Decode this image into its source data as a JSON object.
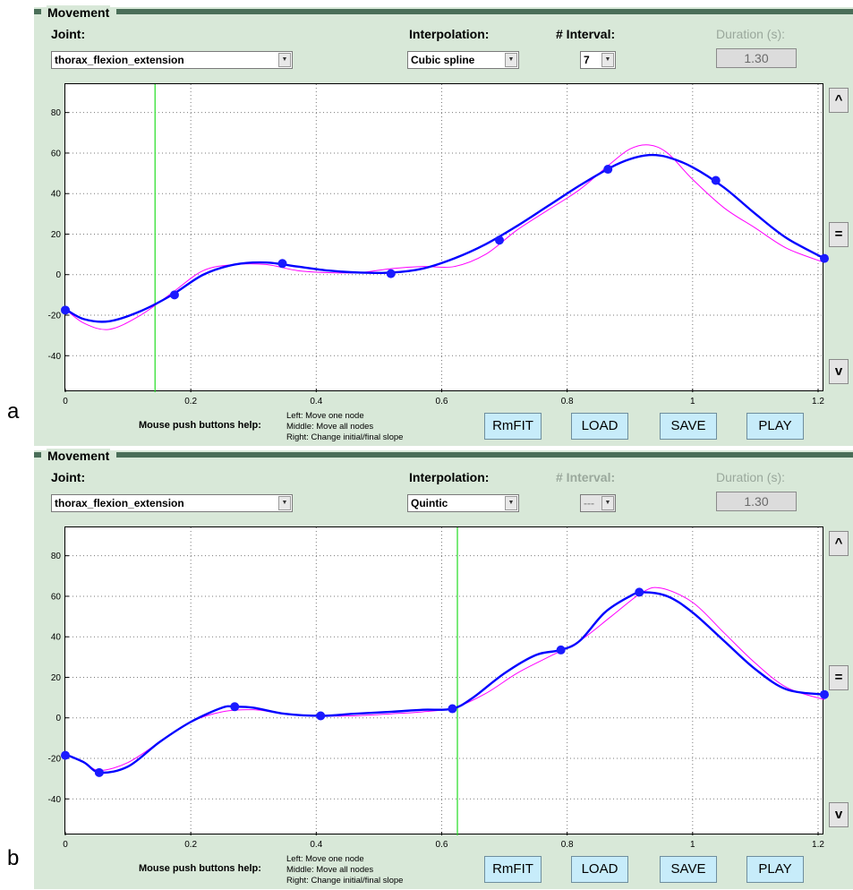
{
  "figure_labels": [
    "a",
    "b"
  ],
  "panels": [
    {
      "title": "Movement",
      "joint_label": "Joint:",
      "joint_value": "thorax_flexion_extension",
      "interp_label": "Interpolation:",
      "interp_value": "Cubic spline",
      "interval_label": "# Interval:",
      "interval_value": "7",
      "interval_enabled": true,
      "duration_label": "Duration (s):",
      "duration_value": "1.30",
      "side_buttons": [
        "^",
        "=",
        "v"
      ],
      "help_label": "Mouse push buttons help:",
      "help_lines": [
        "Left: Move one node",
        "Middle: Move all nodes",
        "Right: Change initial/final slope"
      ],
      "action_buttons": [
        "RmFIT",
        "LOAD",
        "SAVE",
        "PLAY"
      ],
      "chart_data": {
        "type": "line",
        "xlim": [
          0,
          1.21
        ],
        "ylim": [
          -58,
          94
        ],
        "xticks": [
          0,
          0.2,
          0.4,
          0.6,
          0.8,
          1,
          1.2
        ],
        "xtick_labels": [
          "0",
          "0.2",
          "0.4",
          "0.6",
          "0.8",
          "1",
          "1.2"
        ],
        "yticks": [
          -40,
          -20,
          0,
          20,
          40,
          60,
          80
        ],
        "ytick_labels": [
          "-40",
          "-20",
          "0",
          "20",
          "40",
          "60",
          "80"
        ],
        "grid": true,
        "cursor_x": 0.143,
        "series": [
          {
            "color": "#ff00ff",
            "x": [
              0,
              0.03,
              0.07,
              0.12,
              0.17,
              0.22,
              0.27,
              0.32,
              0.37,
              0.42,
              0.47,
              0.52,
              0.57,
              0.62,
              0.67,
              0.72,
              0.77,
              0.82,
              0.87,
              0.9,
              0.93,
              0.96,
              1.0,
              1.05,
              1.1,
              1.15,
              1.21
            ],
            "y": [
              -17,
              -24,
              -27,
              -20,
              -9,
              2,
              5,
              5,
              2,
              1,
              1,
              3,
              4,
              4,
              10,
              22,
              32,
              42,
              55,
              62,
              64,
              60,
              47,
              33,
              23,
              13,
              6
            ]
          },
          {
            "color": "#0000ff",
            "x": [
              0,
              0.03,
              0.07,
              0.12,
              0.17,
              0.22,
              0.27,
              0.32,
              0.37,
              0.42,
              0.47,
              0.52,
              0.57,
              0.62,
              0.67,
              0.72,
              0.77,
              0.82,
              0.87,
              0.9,
              0.93,
              0.96,
              1.0,
              1.05,
              1.1,
              1.15,
              1.21
            ],
            "y": [
              -17,
              -22,
              -23,
              -18,
              -10,
              0,
              5,
              6,
              4,
              2,
              1,
              1,
              3,
              8,
              15,
              24,
              34,
              44,
              53,
              57,
              59,
              58,
              53,
              43,
              30,
              18,
              8
            ]
          }
        ],
        "nodes": {
          "x": [
            0,
            0.174,
            0.346,
            0.519,
            0.692,
            0.865,
            1.037,
            1.21
          ],
          "y": [
            -17.5,
            -10,
            5.5,
            0.5,
            17,
            52,
            46.5,
            8
          ]
        }
      }
    },
    {
      "title": "Movement",
      "joint_label": "Joint:",
      "joint_value": "thorax_flexion_extension",
      "interp_label": "Interpolation:",
      "interp_value": "Quintic",
      "interval_label": "# Interval:",
      "interval_value": "---",
      "interval_enabled": false,
      "duration_label": "Duration (s):",
      "duration_value": "1.30",
      "side_buttons": [
        "^",
        "=",
        "v"
      ],
      "help_label": "Mouse push buttons help:",
      "help_lines": [
        "Left: Move one node",
        "Middle: Move all nodes",
        "Right: Change initial/final slope"
      ],
      "action_buttons": [
        "RmFIT",
        "LOAD",
        "SAVE",
        "PLAY"
      ],
      "chart_data": {
        "type": "line",
        "xlim": [
          0,
          1.21
        ],
        "ylim": [
          -58,
          94
        ],
        "xticks": [
          0,
          0.2,
          0.4,
          0.6,
          0.8,
          1,
          1.2
        ],
        "xtick_labels": [
          "0",
          "0.2",
          "0.4",
          "0.6",
          "0.8",
          "1",
          "1.2"
        ],
        "yticks": [
          -40,
          -20,
          0,
          20,
          40,
          60,
          80
        ],
        "ytick_labels": [
          "-40",
          "-20",
          "0",
          "20",
          "40",
          "60",
          "80"
        ],
        "grid": true,
        "cursor_x": 0.625,
        "series": [
          {
            "color": "#ff00ff",
            "x": [
              0,
              0.03,
              0.055,
              0.1,
              0.15,
              0.2,
              0.25,
              0.3,
              0.35,
              0.41,
              0.46,
              0.52,
              0.57,
              0.62,
              0.67,
              0.72,
              0.77,
              0.82,
              0.87,
              0.92,
              0.95,
              1.0,
              1.05,
              1.1,
              1.15,
              1.21
            ],
            "y": [
              -18,
              -22,
              -26,
              -22,
              -12,
              -2,
              3,
              4,
              2,
              1,
              1,
              2,
              3,
              5,
              12,
              22,
              30,
              38,
              50,
              62,
              64,
              57,
              42,
              27,
              15,
              9
            ]
          },
          {
            "color": "#0000ff",
            "x": [
              0,
              0.03,
              0.055,
              0.1,
              0.15,
              0.2,
              0.25,
              0.27,
              0.3,
              0.35,
              0.41,
              0.46,
              0.52,
              0.57,
              0.617,
              0.65,
              0.7,
              0.75,
              0.79,
              0.82,
              0.86,
              0.9,
              0.92,
              0.96,
              1.0,
              1.05,
              1.1,
              1.15,
              1.21
            ],
            "y": [
              -18,
              -22,
              -27,
              -24,
              -12,
              -2,
              5,
              5.5,
              5,
              2,
              1,
              2,
              3,
              4,
              4.5,
              10,
              22,
              31,
              33.5,
              38,
              52,
              60,
              62,
              60,
              52,
              38,
              24,
              14,
              11.5
            ]
          }
        ],
        "nodes": {
          "x": [
            0,
            0.054,
            0.27,
            0.407,
            0.617,
            0.79,
            0.915,
            1.21
          ],
          "y": [
            -18.5,
            -27,
            5.5,
            1,
            4.5,
            33.5,
            62,
            11.5
          ]
        }
      }
    }
  ]
}
